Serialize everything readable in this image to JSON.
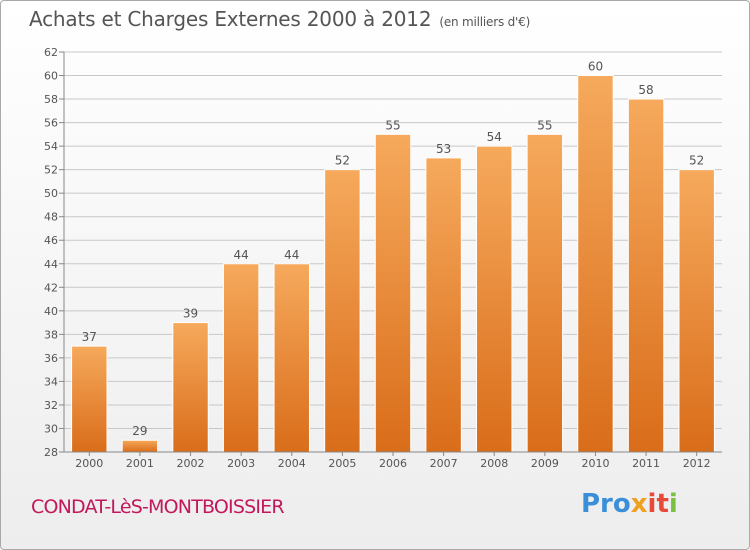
{
  "title": "Achats et Charges Externes 2000 à 2012",
  "unit_note": "(en milliers d'€)",
  "place": "CONDAT-LèS-MONTBOISSIER",
  "brand": {
    "name": "Proxiti",
    "parts": [
      "Pro",
      "x",
      "it",
      "i"
    ]
  },
  "colors": {
    "bar_light": "#f6a95c",
    "bar_dark": "#d96d1a",
    "grid": "#c8c8c8",
    "text": "#555555",
    "place": "#c2185b"
  },
  "chart_data": {
    "type": "bar",
    "categories": [
      "2000",
      "2001",
      "2002",
      "2003",
      "2004",
      "2005",
      "2006",
      "2007",
      "2008",
      "2009",
      "2010",
      "2011",
      "2012"
    ],
    "values": [
      37,
      29,
      39,
      44,
      44,
      52,
      55,
      53,
      54,
      55,
      60,
      58,
      52
    ],
    "data_labels": [
      "37",
      "29",
      "39",
      "44",
      "44",
      "52",
      "55",
      "53",
      "54",
      "55",
      "60",
      "58",
      "52"
    ],
    "ylim": [
      28,
      62
    ],
    "yticks": [
      28,
      30,
      32,
      34,
      36,
      38,
      40,
      42,
      44,
      46,
      48,
      50,
      52,
      54,
      56,
      58,
      60,
      62
    ],
    "grid": true,
    "xlabel": "",
    "ylabel": ""
  }
}
